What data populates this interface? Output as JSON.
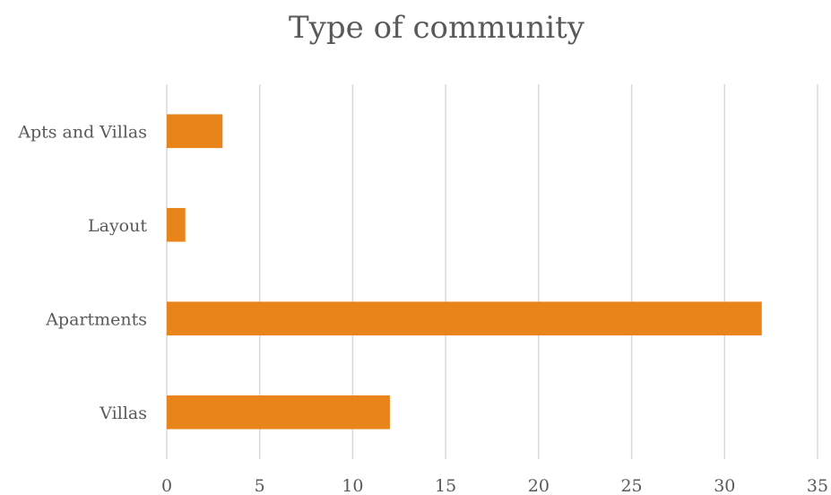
{
  "chart_data": {
    "type": "bar",
    "orientation": "horizontal",
    "title": "Type of community",
    "xlabel": "",
    "ylabel": "",
    "categories": [
      "Apts and Villas",
      "Layout",
      "Apartments",
      "Villas"
    ],
    "values": [
      3,
      1,
      32,
      12
    ],
    "xlim": [
      0,
      35
    ],
    "x_ticks": [
      "0",
      "5",
      "10",
      "15",
      "20",
      "25",
      "30",
      "35"
    ],
    "grid": true,
    "legend": "none",
    "bar_color": "#E8841A"
  }
}
